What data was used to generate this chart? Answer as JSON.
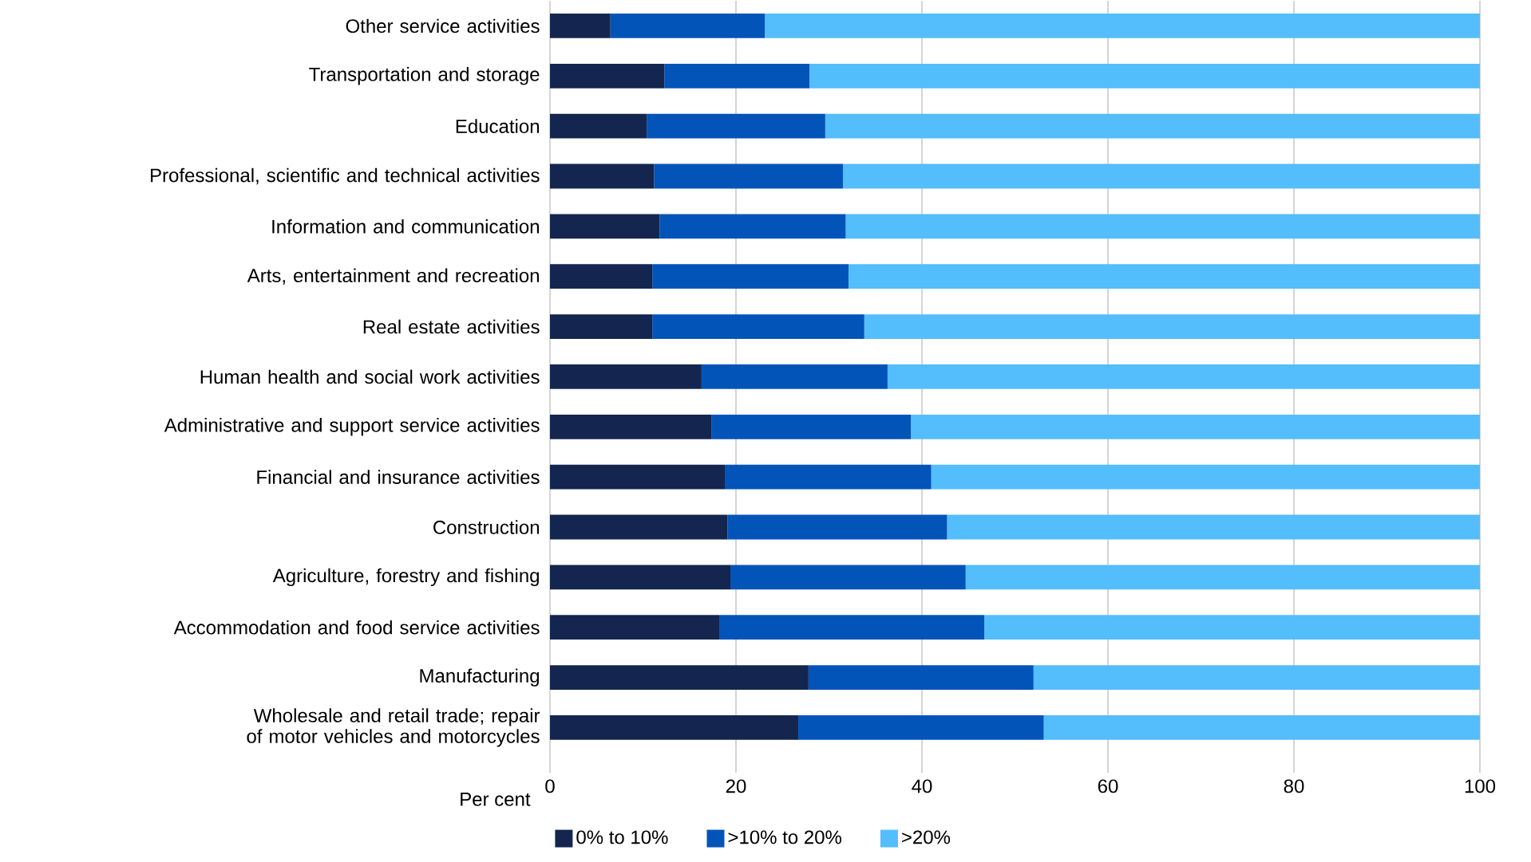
{
  "chart_data": {
    "type": "bar",
    "orientation": "horizontal",
    "stacked": true,
    "categories": [
      "Other service activities",
      "Transportation and storage",
      "Education",
      "Professional, scientific and technical activities",
      "Information and communication",
      "Arts, entertainment and recreation",
      "Real estate activities",
      "Human health and social work activities",
      "Administrative and support service activities",
      "Financial and insurance activities",
      "Construction",
      "Agriculture, forestry and fishing",
      "Accommodation and food service activities",
      "Manufacturing",
      "Wholesale and retail trade; repair of motor vehicles and motorcycles"
    ],
    "series": [
      {
        "name": "0% to 10%",
        "color": "#14264f",
        "values": [
          6.5,
          12.3,
          10.4,
          11.2,
          11.8,
          11.0,
          11.0,
          16.3,
          17.4,
          18.8,
          19.1,
          19.4,
          18.2,
          27.8,
          26.7
        ]
      },
      {
        "name": ">10% to 20%",
        "color": "#0254b9",
        "values": [
          16.6,
          15.6,
          19.2,
          20.3,
          20.0,
          21.1,
          22.8,
          20.0,
          21.4,
          22.2,
          23.6,
          25.3,
          28.5,
          24.2,
          26.4
        ]
      },
      {
        "name": ">20%",
        "color": "#54bdfc",
        "values": [
          76.9,
          72.1,
          70.4,
          68.5,
          68.2,
          67.9,
          66.2,
          63.7,
          61.2,
          59.0,
          57.3,
          55.3,
          53.3,
          48.0,
          46.9
        ]
      }
    ],
    "xlabel": "Per cent",
    "xlim": [
      0,
      100
    ],
    "xticks": [
      0,
      20,
      40,
      60,
      80,
      100
    ],
    "grid": "x",
    "legend": "bottom"
  }
}
